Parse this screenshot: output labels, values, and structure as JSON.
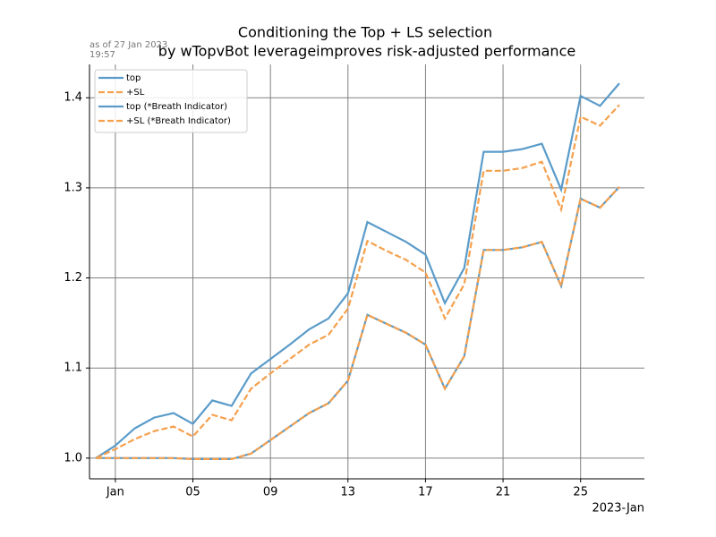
{
  "chart_data": {
    "type": "line",
    "title": [
      "Conditioning the Top + LS selection",
      "by wTopvBot leverageimproves risk-adjusted performance"
    ],
    "annotation": [
      "as of 27 Jan 2023",
      "19:57"
    ],
    "xlabel": "2023-Jan",
    "x": [
      "2022-12-31",
      "2023-01-01",
      "2023-01-02",
      "2023-01-03",
      "2023-01-04",
      "2023-01-05",
      "2023-01-06",
      "2023-01-07",
      "2023-01-08",
      "2023-01-09",
      "2023-01-10",
      "2023-01-11",
      "2023-01-12",
      "2023-01-13",
      "2023-01-14",
      "2023-01-15",
      "2023-01-16",
      "2023-01-17",
      "2023-01-18",
      "2023-01-19",
      "2023-01-20",
      "2023-01-21",
      "2023-01-22",
      "2023-01-23",
      "2023-01-24",
      "2023-01-25",
      "2023-01-26",
      "2023-01-27"
    ],
    "series": [
      {
        "name": "top",
        "color": "#5a9bc9",
        "dash": "solid",
        "values": [
          1.0,
          1.014,
          1.033,
          1.045,
          1.05,
          1.038,
          1.064,
          1.058,
          1.094,
          1.11,
          1.126,
          1.143,
          1.155,
          1.183,
          1.262,
          1.251,
          1.24,
          1.226,
          1.172,
          1.211,
          1.34,
          1.34,
          1.343,
          1.349,
          1.298,
          1.402,
          1.391,
          1.416
        ]
      },
      {
        "name": "+SL",
        "color": "#f5a04d",
        "dash": "dashed",
        "values": [
          1.0,
          1.01,
          1.021,
          1.03,
          1.035,
          1.024,
          1.048,
          1.042,
          1.077,
          1.094,
          1.11,
          1.126,
          1.137,
          1.166,
          1.241,
          1.23,
          1.22,
          1.206,
          1.155,
          1.193,
          1.319,
          1.319,
          1.322,
          1.329,
          1.276,
          1.379,
          1.369,
          1.392
        ]
      },
      {
        "name": "top (*Breath Indicator)",
        "color": "#5a9bc9",
        "dash": "solid",
        "values": [
          1.0,
          1.0,
          1.0,
          1.0,
          1.0,
          0.999,
          0.999,
          0.999,
          1.005,
          1.02,
          1.035,
          1.05,
          1.061,
          1.086,
          1.159,
          1.149,
          1.139,
          1.126,
          1.077,
          1.113,
          1.231,
          1.231,
          1.234,
          1.24,
          1.191,
          1.288,
          1.278,
          1.301
        ]
      },
      {
        "name": "+SL (*Breath Indicator)",
        "color": "#f5a04d",
        "dash": "dashed",
        "values": [
          1.0,
          1.0,
          1.0,
          1.0,
          1.0,
          0.999,
          0.999,
          0.999,
          1.005,
          1.02,
          1.035,
          1.05,
          1.061,
          1.086,
          1.159,
          1.149,
          1.139,
          1.126,
          1.077,
          1.113,
          1.231,
          1.231,
          1.234,
          1.24,
          1.191,
          1.288,
          1.278,
          1.301
        ]
      }
    ],
    "xlim": [
      "2022-12-30T16:00",
      "2023-01-28T07:00"
    ],
    "xticks": [
      {
        "value": "2023-01-01",
        "label": "Jan"
      },
      {
        "value": "2023-01-05",
        "label": "05"
      },
      {
        "value": "2023-01-09",
        "label": "09"
      },
      {
        "value": "2023-01-13",
        "label": "13"
      },
      {
        "value": "2023-01-17",
        "label": "17"
      },
      {
        "value": "2023-01-21",
        "label": "21"
      },
      {
        "value": "2023-01-25",
        "label": "25"
      }
    ],
    "ylim": [
      0.977,
      1.437
    ],
    "yticks": [
      {
        "value": 1.0,
        "label": "1.0"
      },
      1.1,
      1.2,
      1.3,
      1.4
    ],
    "grid": true,
    "legend": "upper-left"
  }
}
